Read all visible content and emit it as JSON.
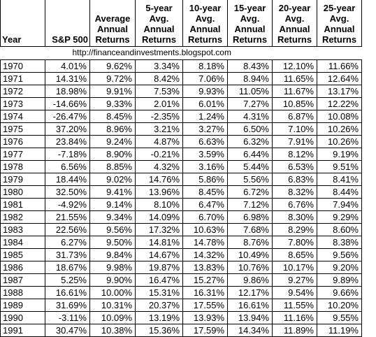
{
  "header": {
    "year": "Year",
    "sp500": "S&P 500",
    "avg": [
      "Average",
      "Annual",
      "Returns"
    ],
    "y5": [
      "5-year",
      "Avg.",
      "Annual",
      "Returns"
    ],
    "y10": [
      "10-year",
      "Avg.",
      "Annual",
      "Returns"
    ],
    "y15": [
      "15-year",
      "Avg.",
      "Annual",
      "Returns"
    ],
    "y20": [
      "20-year",
      "Avg.",
      "Annual",
      "Returns"
    ],
    "y25": [
      "25-year",
      "Avg.",
      "Annual",
      "Returns"
    ]
  },
  "url": "http://financeandinvestments.blogspot.com",
  "rows": [
    [
      "1970",
      "4.01%",
      "9.62%",
      "3.34%",
      "8.18%",
      "8.43%",
      "12.10%",
      "11.66%"
    ],
    [
      "1971",
      "14.31%",
      "9.72%",
      "8.42%",
      "7.06%",
      "8.94%",
      "11.65%",
      "12.64%"
    ],
    [
      "1972",
      "18.98%",
      "9.91%",
      "7.53%",
      "9.93%",
      "11.05%",
      "11.67%",
      "13.17%"
    ],
    [
      "1973",
      "-14.66%",
      "9.33%",
      "2.01%",
      "6.01%",
      "7.27%",
      "10.85%",
      "12.22%"
    ],
    [
      "1974",
      "-26.47%",
      "8.45%",
      "-2.35%",
      "1.24%",
      "4.31%",
      "6.87%",
      "10.08%"
    ],
    [
      "1975",
      "37.20%",
      "8.96%",
      "3.21%",
      "3.27%",
      "6.50%",
      "7.10%",
      "10.26%"
    ],
    [
      "1976",
      "23.84%",
      "9.24%",
      "4.87%",
      "6.63%",
      "6.32%",
      "7.91%",
      "10.26%"
    ],
    [
      "1977",
      "-7.18%",
      "8.90%",
      "-0.21%",
      "3.59%",
      "6.44%",
      "8.12%",
      "9.19%"
    ],
    [
      "1978",
      "6.56%",
      "8.85%",
      "4.32%",
      "3.16%",
      "5.44%",
      "6.53%",
      "9.51%"
    ],
    [
      "1979",
      "18.44%",
      "9.02%",
      "14.76%",
      "5.86%",
      "5.56%",
      "6.83%",
      "8.41%"
    ],
    [
      "1980",
      "32.50%",
      "9.41%",
      "13.96%",
      "8.45%",
      "6.72%",
      "8.32%",
      "8.44%"
    ],
    [
      "1981",
      "-4.92%",
      "9.14%",
      "8.10%",
      "6.47%",
      "7.12%",
      "6.76%",
      "7.94%"
    ],
    [
      "1982",
      "21.55%",
      "9.34%",
      "14.09%",
      "6.70%",
      "6.98%",
      "8.30%",
      "9.29%"
    ],
    [
      "1983",
      "22.56%",
      "9.56%",
      "17.32%",
      "10.63%",
      "7.68%",
      "8.29%",
      "8.60%"
    ],
    [
      "1984",
      "6.27%",
      "9.50%",
      "14.81%",
      "14.78%",
      "8.76%",
      "7.80%",
      "8.38%"
    ],
    [
      "1985",
      "31.73%",
      "9.84%",
      "14.67%",
      "14.32%",
      "10.49%",
      "8.65%",
      "9.56%"
    ],
    [
      "1986",
      "18.67%",
      "9.98%",
      "19.87%",
      "13.83%",
      "10.76%",
      "10.17%",
      "9.20%"
    ],
    [
      "1987",
      "5.25%",
      "9.90%",
      "16.47%",
      "15.27%",
      "9.86%",
      "9.27%",
      "9.89%"
    ],
    [
      "1988",
      "16.61%",
      "10.00%",
      "15.31%",
      "16.31%",
      "12.17%",
      "9.54%",
      "9.66%"
    ],
    [
      "1989",
      "31.69%",
      "10.31%",
      "20.37%",
      "17.55%",
      "16.61%",
      "11.55%",
      "10.20%"
    ],
    [
      "1990",
      "-3.11%",
      "10.09%",
      "13.19%",
      "13.93%",
      "13.94%",
      "11.16%",
      "9.55%"
    ],
    [
      "1991",
      "30.47%",
      "10.38%",
      "15.36%",
      "17.59%",
      "14.34%",
      "11.89%",
      "11.19%"
    ]
  ]
}
